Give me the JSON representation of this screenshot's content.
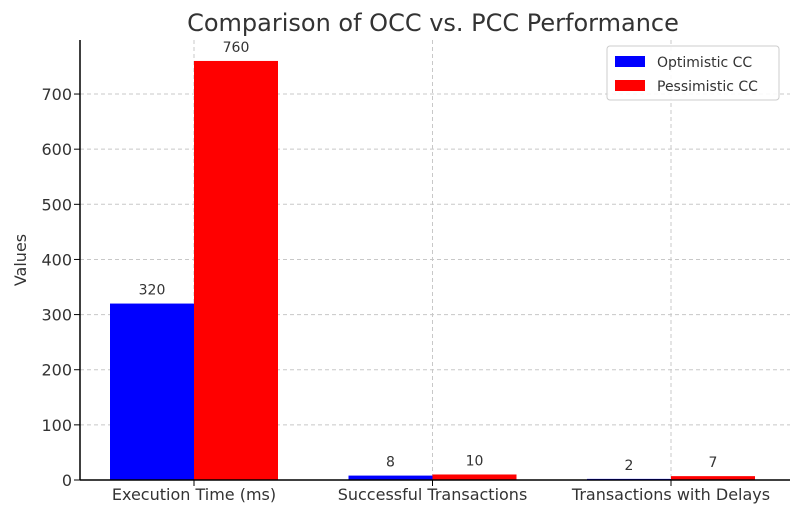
{
  "chart_data": {
    "type": "bar",
    "title": "Comparison of OCC vs. PCC Performance",
    "xlabel": "",
    "ylabel": "Values",
    "categories": [
      "Execution Time (ms)",
      "Successful Transactions",
      "Transactions with Delays"
    ],
    "series": [
      {
        "name": "Optimistic CC",
        "color": "#0000ff",
        "values": [
          320,
          8,
          2
        ]
      },
      {
        "name": "Pessimistic CC",
        "color": "#ff0000",
        "values": [
          760,
          10,
          7
        ]
      }
    ],
    "ylim": [
      0,
      798
    ],
    "yticks": [
      0,
      100,
      200,
      300,
      400,
      500,
      600,
      700
    ],
    "grid": true,
    "legend_position": "top-right"
  }
}
